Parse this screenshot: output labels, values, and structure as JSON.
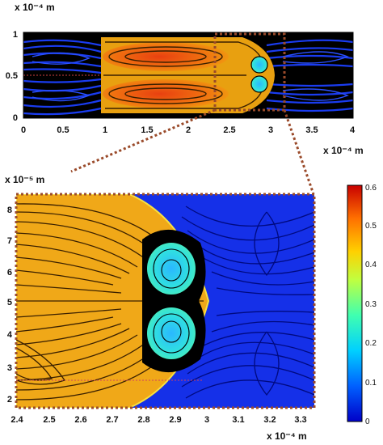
{
  "top_plot": {
    "y_unit": "x 10⁻⁴ m",
    "x_unit": "x 10⁻⁴ m",
    "x_ticks": [
      "0",
      "0.5",
      "1",
      "1.5",
      "2",
      "2.5",
      "3",
      "3.5",
      "4"
    ],
    "y_ticks": [
      "0",
      "0.5",
      "1"
    ]
  },
  "bottom_plot": {
    "y_unit": "x 10⁻⁵ m",
    "x_unit": "x 10⁻⁴ m",
    "x_ticks": [
      "2.4",
      "2.5",
      "2.6",
      "2.7",
      "2.8",
      "2.9",
      "3",
      "3.1",
      "3.2",
      "3.3"
    ],
    "y_ticks": [
      "2",
      "3",
      "4",
      "5",
      "6",
      "7",
      "8"
    ]
  },
  "colorbar": {
    "ticks": [
      "0",
      "0.1",
      "0.2",
      "0.3",
      "0.4",
      "0.5",
      "0.6"
    ],
    "range": [
      0,
      0.6
    ],
    "colors": [
      "#0000c8",
      "#0060ff",
      "#00d0ff",
      "#40ffb0",
      "#c0ff40",
      "#ffd000",
      "#ff7000",
      "#c80000"
    ]
  },
  "colors": {
    "background_flow": "#1530e8",
    "core_flow": "#f0a010",
    "core_hot": "#e85010",
    "vortex": "#30e8d0",
    "zoom_box": "#a05030"
  }
}
